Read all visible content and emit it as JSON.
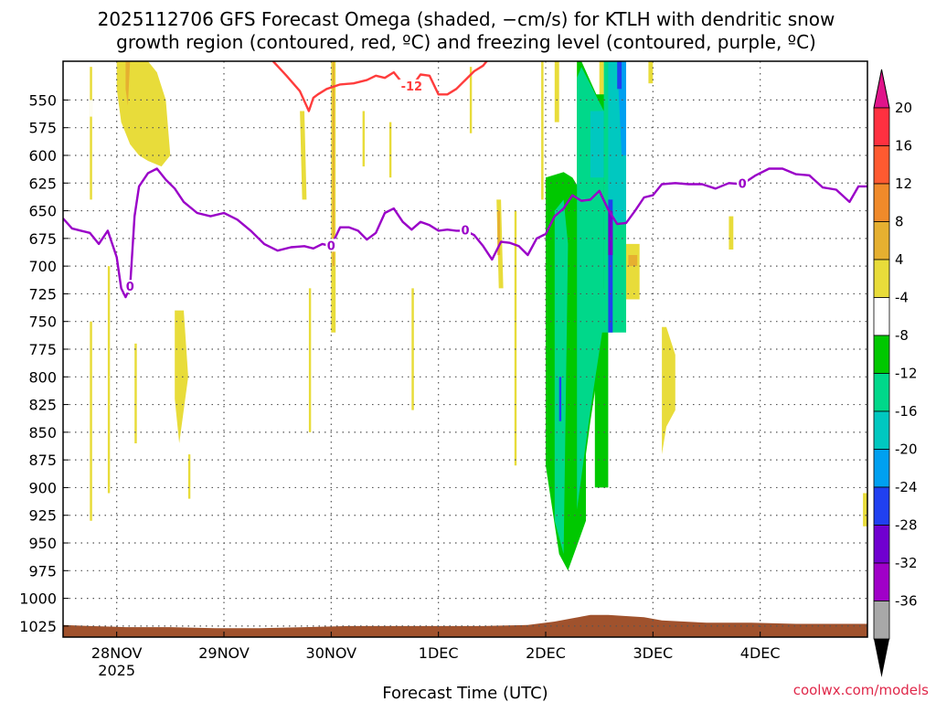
{
  "title_lines": [
    "2025112706 GFS Forecast Omega (shaded, −cm/s) for KTLH with dendritic snow",
    "growth region (contoured, red, ºC) and freezing level (contoured, purple, ºC)"
  ],
  "watermark": "coolwx.com/models",
  "colorbar_labels": [
    "20",
    "16",
    "12",
    "8",
    "4",
    "-4",
    "-8",
    "-12",
    "-16",
    "-20",
    "-24",
    "-28",
    "-32",
    "-36"
  ],
  "colorbar_colors": [
    "#ff3040",
    "#ff5a30",
    "#f08a2a",
    "#e6b030",
    "#e8dc3a",
    "#ffffff",
    "#00c800",
    "#00d88a",
    "#00c8c0",
    "#00a0f0",
    "#2040f0",
    "#7000d0",
    "#a000c8",
    "#a8a8a8"
  ],
  "chart_data": {
    "type": "heatmap",
    "title": "2025112706 GFS Forecast Omega (shaded, −cm/s) for KTLH with dendritic snow growth region (contoured, red, ºC) and freezing level (contoured, purple, ºC)",
    "xlabel": "Forecast Time (UTC)",
    "ylabel": "",
    "x_tick_labels": [
      "28NOV",
      "29NOV",
      "30NOV",
      "1DEC",
      "2DEC",
      "3DEC",
      "4DEC"
    ],
    "x_year_label": "2025",
    "x_ticks_hours": [
      18,
      42,
      66,
      90,
      114,
      138,
      162
    ],
    "xlim_hours": [
      6,
      186
    ],
    "y_ticks": [
      550,
      575,
      600,
      625,
      650,
      675,
      700,
      725,
      750,
      775,
      800,
      825,
      850,
      875,
      900,
      925,
      950,
      975,
      1000,
      1025
    ],
    "ylim": [
      1035,
      515
    ],
    "grid": true,
    "colorbar_levels": [
      -36,
      -32,
      -28,
      -24,
      -20,
      -16,
      -12,
      -8,
      -4,
      4,
      8,
      12,
      16,
      20
    ],
    "freezing_level": {
      "label": "0",
      "color": "#9a00c8",
      "hours": [
        6,
        8,
        10,
        12,
        14,
        16,
        18,
        19,
        20,
        21,
        22,
        23,
        25,
        27,
        29,
        31,
        33,
        36,
        39,
        42,
        45,
        48,
        51,
        54,
        57,
        60,
        62,
        64,
        66,
        68,
        70,
        72,
        74,
        76,
        78,
        80,
        82,
        84,
        86,
        88,
        90,
        92,
        94,
        96,
        98,
        100,
        102,
        104,
        106,
        108,
        110,
        112,
        114,
        116,
        118,
        120,
        122,
        124,
        126,
        128,
        130,
        132,
        134,
        136,
        138,
        140,
        143,
        146,
        149,
        152,
        155,
        158,
        161,
        164,
        167,
        170,
        173,
        176,
        179,
        182,
        184,
        186
      ],
      "pressure": [
        657,
        666,
        668,
        670,
        680,
        668,
        692,
        720,
        728,
        719,
        655,
        628,
        616,
        612,
        622,
        630,
        642,
        652,
        655,
        652,
        658,
        668,
        680,
        686,
        683,
        682,
        684,
        680,
        682,
        665,
        665,
        668,
        676,
        670,
        652,
        648,
        660,
        667,
        660,
        663,
        668,
        667,
        668,
        668,
        672,
        682,
        694,
        678,
        679,
        682,
        690,
        675,
        671,
        655,
        648,
        636,
        641,
        640,
        632,
        649,
        662,
        661,
        650,
        638,
        636,
        626,
        625,
        626,
        626,
        630,
        625,
        626,
        618,
        612,
        612,
        617,
        618,
        629,
        631,
        642,
        628,
        628
      ]
    },
    "dendritic_growth_region": {
      "label": "-12",
      "color": "#ff3c3c",
      "hours": [
        53,
        56,
        59,
        61,
        62,
        63,
        65,
        68,
        71,
        74,
        76,
        78,
        80,
        82,
        84,
        86,
        88,
        90,
        92,
        94,
        96,
        98,
        100,
        101,
        102
      ],
      "pressure": [
        515,
        528,
        542,
        560,
        548,
        545,
        540,
        536,
        535,
        532,
        528,
        530,
        525,
        535,
        538,
        527,
        528,
        545,
        545,
        540,
        532,
        524,
        519,
        514,
        510
      ]
    },
    "terrain_top_pressure": {
      "hours": [
        6,
        12,
        20,
        30,
        40,
        50,
        60,
        70,
        80,
        90,
        100,
        110,
        116,
        120,
        124,
        128,
        132,
        136,
        140,
        150,
        160,
        170,
        180,
        186
      ],
      "pressure": [
        1024,
        1025,
        1026,
        1026,
        1027,
        1027,
        1026,
        1025,
        1025,
        1025,
        1025,
        1024,
        1021,
        1018,
        1015,
        1015,
        1016,
        1017,
        1020,
        1022,
        1022,
        1023,
        1023,
        1023
      ]
    },
    "omega_regions": [
      {
        "level": 4,
        "hours": [
          18,
          19,
          25,
          27,
          29,
          30,
          28,
          25,
          23,
          21,
          19,
          18
        ],
        "pressure": [
          515,
          515,
          515,
          525,
          550,
          600,
          610,
          605,
          600,
          590,
          570,
          540
        ]
      },
      {
        "level": 8,
        "hours": [
          20,
          21,
          20.5,
          20
        ],
        "pressure": [
          515,
          515,
          555,
          540
        ]
      },
      {
        "level": 4,
        "hours": [
          12,
          12.5,
          12.5,
          12
        ],
        "pressure": [
          520,
          520,
          640,
          640
        ]
      },
      {
        "level": 4,
        "hours": [
          12,
          12.5,
          12.5,
          12
        ],
        "pressure": [
          750,
          750,
          930,
          930
        ]
      },
      {
        "level": 4,
        "hours": [
          16,
          16.5,
          16.5,
          16
        ],
        "pressure": [
          700,
          700,
          905,
          905
        ]
      },
      {
        "level": 4,
        "hours": [
          22,
          22.5,
          22.5,
          22
        ],
        "pressure": [
          770,
          770,
          860,
          860
        ]
      },
      {
        "level": 4,
        "hours": [
          31,
          33,
          34,
          32,
          31
        ],
        "pressure": [
          740,
          740,
          800,
          860,
          820
        ]
      },
      {
        "level": 4,
        "hours": [
          34,
          34.5,
          34.5,
          34
        ],
        "pressure": [
          870,
          870,
          910,
          910
        ]
      },
      {
        "level": 4,
        "hours": [
          59,
          60,
          60.5,
          59.5
        ],
        "pressure": [
          560,
          560,
          640,
          640
        ]
      },
      {
        "level": 4,
        "hours": [
          61,
          61.5,
          61.5,
          61
        ],
        "pressure": [
          720,
          720,
          850,
          850
        ]
      },
      {
        "level": 4,
        "hours": [
          66,
          67,
          67,
          66
        ],
        "pressure": [
          515,
          515,
          760,
          760
        ]
      },
      {
        "level": 8,
        "hours": [
          66.3,
          66.7,
          66.7,
          66.3
        ],
        "pressure": [
          515,
          515,
          700,
          700
        ]
      },
      {
        "level": 4,
        "hours": [
          73,
          73.5,
          73.5,
          73
        ],
        "pressure": [
          560,
          560,
          610,
          610
        ]
      },
      {
        "level": 4,
        "hours": [
          79,
          79.5,
          79.5,
          79
        ],
        "pressure": [
          570,
          570,
          620,
          620
        ]
      },
      {
        "level": 4,
        "hours": [
          84,
          84.5,
          84.5,
          84
        ],
        "pressure": [
          720,
          720,
          830,
          830
        ]
      },
      {
        "level": 4,
        "hours": [
          97,
          97.5,
          97.5,
          97
        ],
        "pressure": [
          520,
          520,
          580,
          580
        ]
      },
      {
        "level": 4,
        "hours": [
          103,
          104,
          104.5,
          103.5
        ],
        "pressure": [
          640,
          640,
          720,
          720
        ]
      },
      {
        "level": 8,
        "hours": [
          103.2,
          103.8,
          103.8,
          103.2
        ],
        "pressure": [
          650,
          650,
          690,
          690
        ]
      },
      {
        "level": 4,
        "hours": [
          107,
          107.5,
          107.5,
          107
        ],
        "pressure": [
          650,
          650,
          880,
          880
        ]
      },
      {
        "level": 4,
        "hours": [
          113,
          113.5,
          113.5,
          113
        ],
        "pressure": [
          515,
          515,
          640,
          640
        ]
      },
      {
        "level": 4,
        "hours": [
          116,
          117,
          117,
          116
        ],
        "pressure": [
          515,
          515,
          570,
          570
        ]
      },
      {
        "level": 4,
        "hours": [
          121,
          122,
          122,
          121
        ],
        "pressure": [
          515,
          515,
          540,
          540
        ]
      },
      {
        "level": 4,
        "hours": [
          126,
          127,
          127,
          126
        ],
        "pressure": [
          515,
          515,
          620,
          620
        ]
      },
      {
        "level": 4,
        "hours": [
          132,
          135,
          135,
          132
        ],
        "pressure": [
          680,
          680,
          730,
          730
        ]
      },
      {
        "level": 8,
        "hours": [
          132.5,
          134.5,
          134.5,
          132.5
        ],
        "pressure": [
          690,
          690,
          700,
          700
        ]
      },
      {
        "level": 4,
        "hours": [
          137,
          138,
          138,
          137
        ],
        "pressure": [
          515,
          515,
          535,
          535
        ]
      },
      {
        "level": 4,
        "hours": [
          140,
          141,
          143,
          143,
          141,
          140
        ],
        "pressure": [
          755,
          755,
          780,
          830,
          845,
          870
        ]
      },
      {
        "level": 4,
        "hours": [
          155,
          156,
          156,
          155
        ],
        "pressure": [
          655,
          655,
          685,
          685
        ]
      },
      {
        "level": 4,
        "hours": [
          185,
          186,
          186,
          185
        ],
        "pressure": [
          905,
          905,
          935,
          935
        ]
      },
      {
        "level": -4,
        "hours": [
          12,
          12.5,
          12.5,
          12
        ],
        "pressure": [
          550,
          550,
          565,
          565
        ]
      },
      {
        "level": -4,
        "hours": [
          15,
          15.3,
          15.3,
          15
        ],
        "pressure": [
          585,
          585,
          610,
          610
        ]
      },
      {
        "level": -4,
        "hours": [
          62,
          63,
          63.5,
          62.5
        ],
        "pressure": [
          705,
          705,
          945,
          945
        ]
      },
      {
        "level": -4,
        "hours": [
          69,
          69.5,
          69.5,
          69
        ],
        "pressure": [
          900,
          900,
          975,
          975
        ]
      },
      {
        "level": -4,
        "hours": [
          71,
          71.5,
          71.5,
          71
        ],
        "pressure": [
          915,
          915,
          950,
          950
        ]
      },
      {
        "level": -4,
        "hours": [
          83,
          83.3,
          83.3,
          83
        ],
        "pressure": [
          945,
          945,
          955,
          955
        ]
      },
      {
        "level": -4,
        "hours": [
          85,
          86,
          85.5,
          85
        ],
        "pressure": [
          815,
          815,
          900,
          900
        ]
      },
      {
        "level": -4,
        "hours": [
          91,
          91.5,
          91.5,
          91
        ],
        "pressure": [
          755,
          755,
          865,
          865
        ]
      },
      {
        "level": -4,
        "hours": [
          102,
          102.5,
          102.5,
          102
        ],
        "pressure": [
          535,
          535,
          575,
          575
        ]
      },
      {
        "level": -4,
        "hours": [
          119,
          119.5,
          119.5,
          119
        ],
        "pressure": [
          550,
          550,
          590,
          590
        ]
      },
      {
        "level": -4,
        "hours": [
          186,
          187,
          187,
          186
        ],
        "pressure": [
          620,
          620,
          640,
          640
        ]
      },
      {
        "level": -8,
        "hours": [
          114,
          118,
          120,
          123,
          123,
          119,
          117,
          114
        ],
        "pressure": [
          620,
          615,
          620,
          640,
          930,
          975,
          960,
          880
        ]
      },
      {
        "level": -8,
        "hours": [
          121,
          122,
          127,
          127,
          124,
          121
        ],
        "pressure": [
          515,
          515,
          560,
          760,
          840,
          930
        ]
      },
      {
        "level": -8,
        "hours": [
          125,
          128,
          128,
          125
        ],
        "pressure": [
          545,
          545,
          900,
          900
        ]
      },
      {
        "level": -12,
        "hours": [
          116,
          118,
          119,
          118,
          116
        ],
        "pressure": [
          650,
          640,
          680,
          960,
          930
        ]
      },
      {
        "level": -12,
        "hours": [
          121,
          122,
          127,
          127,
          124,
          121
        ],
        "pressure": [
          530,
          520,
          560,
          750,
          830,
          920
        ]
      },
      {
        "level": -12,
        "hours": [
          127,
          132,
          132,
          126,
          127
        ],
        "pressure": [
          515,
          515,
          760,
          760,
          720
        ]
      },
      {
        "level": -16,
        "hours": [
          124,
          127,
          127,
          124
        ],
        "pressure": [
          560,
          560,
          620,
          620
        ]
      },
      {
        "level": -16,
        "hours": [
          128,
          132,
          132,
          128
        ],
        "pressure": [
          515,
          515,
          660,
          660
        ]
      },
      {
        "level": -20,
        "hours": [
          130,
          132,
          132,
          131
        ],
        "pressure": [
          515,
          515,
          600,
          600
        ]
      },
      {
        "level": -24,
        "hours": [
          130,
          131,
          131,
          130
        ],
        "pressure": [
          515,
          515,
          540,
          540
        ]
      },
      {
        "level": -24,
        "hours": [
          128,
          129,
          129,
          128
        ],
        "pressure": [
          640,
          640,
          760,
          760
        ]
      },
      {
        "level": -24,
        "hours": [
          117,
          117.5,
          117.5,
          117
        ],
        "pressure": [
          800,
          800,
          840,
          840
        ]
      },
      {
        "level": -28,
        "hours": [
          128,
          129,
          129,
          128
        ],
        "pressure": [
          650,
          650,
          690,
          690
        ]
      }
    ]
  }
}
